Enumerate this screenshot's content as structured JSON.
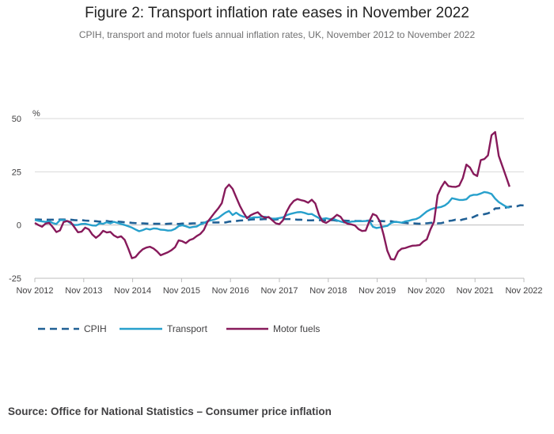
{
  "header": {
    "title": "Figure 2: Transport inflation rate eases in November 2022",
    "subtitle": "CPIH, transport and motor fuels annual inflation rates, UK, November 2012 to November 2022"
  },
  "footer": {
    "source": "Source: Office for National Statistics – Consumer price inflation"
  },
  "chart_data": {
    "type": "line",
    "title": "Figure 2: Transport inflation rate eases in November 2022",
    "ylabel": "%",
    "xlabel": "",
    "ylim": [
      -25,
      50
    ],
    "yticks": [
      50,
      25,
      0,
      -25
    ],
    "xticks": [
      "Nov 2012",
      "Nov 2013",
      "Nov 2014",
      "Nov 2015",
      "Nov 2016",
      "Nov 2017",
      "Nov 2018",
      "Nov 2019",
      "Nov 2020",
      "Nov 2021",
      "Nov 2022"
    ],
    "x_start": "Nov 2012",
    "x_end": "Nov 2022",
    "grid": true,
    "legend": "bottom-left",
    "colors": {
      "CPIH": "#206095",
      "Transport": "#27a0cc",
      "Motor fuels": "#871a5b",
      "grid": "#d9d9d9",
      "axis": "#bcbcbd"
    },
    "series": [
      {
        "name": "CPIH",
        "style": "dashed",
        "values": [
          2.6,
          2.6,
          2.5,
          2.5,
          2.5,
          2.5,
          2.3,
          2.6,
          2.6,
          2.5,
          2.5,
          2.3,
          2.2,
          2.3,
          2.1,
          2.0,
          1.9,
          1.8,
          1.6,
          1.7,
          1.9,
          1.6,
          1.6,
          1.6,
          1.5,
          1.3,
          1.2,
          1.0,
          0.9,
          0.7,
          0.8,
          0.7,
          0.6,
          0.6,
          0.6,
          0.6,
          0.5,
          0.6,
          0.7,
          0.6,
          0.5,
          0.7,
          0.7,
          0.7,
          0.8,
          0.8,
          1.0,
          1.1,
          1.2,
          1.2,
          1.2,
          1.2,
          1.3,
          1.2,
          1.6,
          1.7,
          1.9,
          2.1,
          2.2,
          2.3,
          2.6,
          2.7,
          2.7,
          2.7,
          2.8,
          2.7,
          2.7,
          2.6,
          2.8,
          2.8,
          2.8,
          2.8,
          2.7,
          2.5,
          2.5,
          2.3,
          2.2,
          2.2,
          2.3,
          2.3,
          2.2,
          2.2,
          2.3,
          2.3,
          2.0,
          2.1,
          2.1,
          2.0,
          1.9,
          1.9,
          1.9,
          1.9,
          2.0,
          2.1,
          1.8,
          1.8,
          1.9,
          1.8,
          1.7,
          1.8,
          1.5,
          1.5,
          1.1,
          1.0,
          0.8,
          0.8,
          0.7,
          0.6,
          0.9,
          0.8,
          1.0,
          1.1,
          0.8,
          0.9,
          1.3,
          1.9,
          2.1,
          2.5,
          2.1,
          2.6,
          3.0,
          3.1,
          3.8,
          4.6,
          4.8,
          5.1,
          5.5,
          6.2,
          7.8,
          7.9,
          8.2,
          8.2,
          8.6,
          8.8,
          8.8,
          9.3,
          9.2
        ]
      },
      {
        "name": "Transport",
        "style": "solid",
        "values": [
          2.4,
          2.0,
          1.7,
          1.5,
          1.8,
          0.9,
          0.5,
          2.3,
          2.3,
          1.9,
          0.7,
          0.0,
          0.1,
          0.5,
          0.6,
          0.2,
          -0.2,
          -0.3,
          0.8,
          0.6,
          1.3,
          0.8,
          1.5,
          1.0,
          0.5,
          0.0,
          -0.6,
          -1.2,
          -2.1,
          -2.9,
          -2.4,
          -1.7,
          -2.1,
          -1.6,
          -1.7,
          -2.2,
          -2.3,
          -2.6,
          -2.5,
          -1.8,
          -0.5,
          -0.1,
          -0.6,
          -1.2,
          -0.9,
          -0.7,
          0.3,
          0.9,
          1.8,
          2.2,
          2.6,
          3.3,
          4.6,
          5.8,
          6.6,
          4.7,
          5.8,
          4.6,
          3.9,
          3.8,
          3.3,
          3.6,
          3.6,
          3.8,
          3.9,
          3.5,
          3.0,
          3.0,
          3.3,
          3.6,
          4.6,
          5.2,
          5.6,
          6.0,
          6.1,
          5.7,
          5.1,
          5.2,
          4.2,
          3.3,
          2.9,
          3.2,
          2.8,
          2.9,
          2.2,
          1.7,
          1.2,
          1.2,
          1.6,
          1.7,
          1.9,
          1.8,
          1.9,
          2.0,
          -0.8,
          -1.4,
          -1.1,
          -0.7,
          -0.4,
          0.9,
          1.5,
          1.4,
          1.1,
          1.7,
          2.0,
          2.5,
          2.8,
          3.6,
          5.0,
          6.4,
          7.3,
          7.9,
          8.2,
          8.5,
          9.2,
          10.5,
          12.6,
          12.2,
          11.8,
          11.8,
          12.1,
          13.7,
          14.2,
          14.2,
          14.8,
          15.5,
          15.2,
          14.6,
          12.4,
          10.8,
          9.7,
          8.7,
          8.1
        ]
      },
      {
        "name": "Motor fuels",
        "style": "solid",
        "values": [
          1.0,
          0.0,
          -0.8,
          0.7,
          1.0,
          -1.0,
          -3.3,
          -2.5,
          1.4,
          1.9,
          1.3,
          -1.0,
          -3.4,
          -3.1,
          -1.2,
          -2.0,
          -4.5,
          -6.0,
          -4.7,
          -2.7,
          -3.5,
          -3.2,
          -4.9,
          -5.8,
          -5.3,
          -7.0,
          -11.1,
          -15.6,
          -15.0,
          -13.0,
          -11.4,
          -10.6,
          -10.2,
          -11.0,
          -12.4,
          -14.2,
          -13.5,
          -12.8,
          -11.8,
          -10.4,
          -7.2,
          -7.6,
          -8.5,
          -7.1,
          -6.5,
          -5.2,
          -4.2,
          -2.3,
          1.4,
          3.6,
          5.8,
          7.8,
          10.3,
          17.1,
          19.0,
          17.0,
          13.0,
          9.1,
          5.9,
          3.2,
          4.6,
          5.4,
          6.0,
          4.3,
          3.4,
          3.8,
          2.3,
          0.8,
          0.4,
          2.2,
          6.2,
          9.3,
          11.3,
          12.2,
          11.7,
          11.3,
          10.5,
          11.9,
          10.1,
          4.8,
          1.7,
          1.0,
          2.1,
          3.3,
          4.8,
          3.9,
          1.5,
          0.6,
          0.3,
          -0.2,
          -1.9,
          -2.8,
          -2.6,
          1.7,
          5.2,
          4.4,
          1.5,
          -4.7,
          -12.0,
          -16.0,
          -16.2,
          -12.5,
          -11.1,
          -10.8,
          -10.2,
          -9.7,
          -9.6,
          -9.4,
          -7.8,
          -6.7,
          -2.1,
          1.5,
          14.0,
          17.7,
          20.4,
          18.3,
          18.0,
          17.9,
          18.5,
          22.0,
          28.4,
          27.0,
          24.0,
          23.0,
          30.5,
          31.0,
          32.7,
          42.2,
          43.7,
          32.5,
          27.7,
          22.9,
          18.0
        ]
      }
    ]
  },
  "legend": {
    "items": [
      {
        "label": "CPIH"
      },
      {
        "label": "Transport"
      },
      {
        "label": "Motor fuels"
      }
    ]
  }
}
